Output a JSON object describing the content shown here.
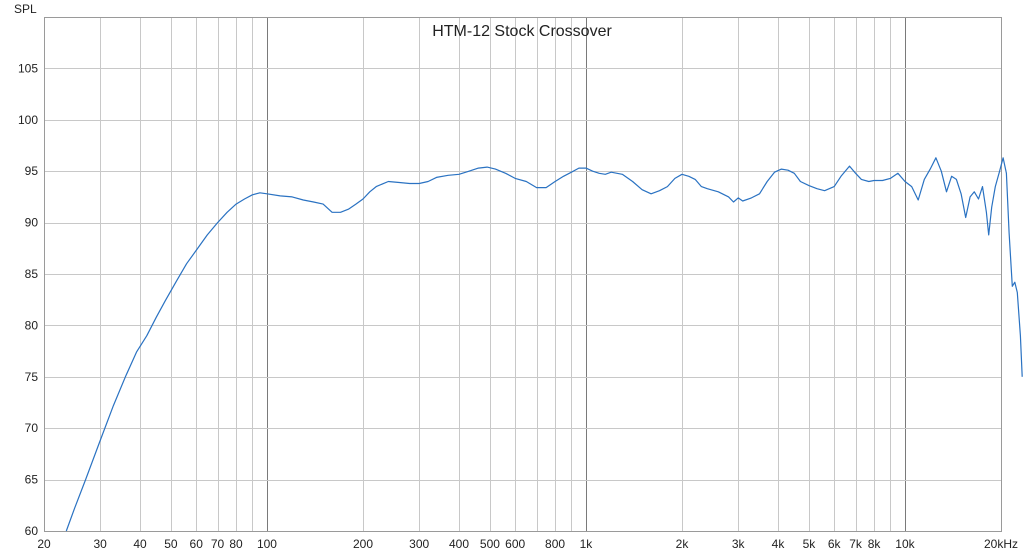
{
  "chart_data": {
    "type": "line",
    "title": "HTM-12 Stock Crossover",
    "ylabel": "SPL",
    "xlabel": "",
    "x_scale": "log",
    "xlim": [
      20,
      20000
    ],
    "ylim": [
      60,
      110
    ],
    "grid": true,
    "x_ticks": [
      {
        "value": 20,
        "label": "20"
      },
      {
        "value": 30,
        "label": "30"
      },
      {
        "value": 40,
        "label": "40"
      },
      {
        "value": 50,
        "label": "50"
      },
      {
        "value": 60,
        "label": "60"
      },
      {
        "value": 70,
        "label": "70"
      },
      {
        "value": 80,
        "label": "80"
      },
      {
        "value": 100,
        "label": "100"
      },
      {
        "value": 200,
        "label": "200"
      },
      {
        "value": 300,
        "label": "300"
      },
      {
        "value": 400,
        "label": "400"
      },
      {
        "value": 500,
        "label": "500"
      },
      {
        "value": 600,
        "label": "600"
      },
      {
        "value": 800,
        "label": "800"
      },
      {
        "value": 1000,
        "label": "1k"
      },
      {
        "value": 2000,
        "label": "2k"
      },
      {
        "value": 3000,
        "label": "3k"
      },
      {
        "value": 4000,
        "label": "4k"
      },
      {
        "value": 5000,
        "label": "5k"
      },
      {
        "value": 6000,
        "label": "6k"
      },
      {
        "value": 7000,
        "label": "7k"
      },
      {
        "value": 8000,
        "label": "8k"
      },
      {
        "value": 10000,
        "label": "10k"
      },
      {
        "value": 20000,
        "label": "20kHz"
      }
    ],
    "y_ticks": [
      60,
      65,
      70,
      75,
      80,
      85,
      90,
      95,
      100,
      105
    ],
    "colors": {
      "line": "#2a72c2",
      "major_grid": "#7a7a7a",
      "minor_grid": "#c8c8c8",
      "frame": "#9a9a9a"
    },
    "series": [
      {
        "points": [
          [
            23.5,
            60.0
          ],
          [
            25,
            62.3
          ],
          [
            27,
            65.0
          ],
          [
            30,
            68.8
          ],
          [
            33,
            72.2
          ],
          [
            36,
            75.0
          ],
          [
            39,
            77.4
          ],
          [
            42,
            79.0
          ],
          [
            45,
            80.8
          ],
          [
            48,
            82.4
          ],
          [
            52,
            84.3
          ],
          [
            56,
            86.0
          ],
          [
            60,
            87.3
          ],
          [
            65,
            88.8
          ],
          [
            70,
            90.0
          ],
          [
            75,
            91.0
          ],
          [
            80,
            91.8
          ],
          [
            85,
            92.3
          ],
          [
            90,
            92.7
          ],
          [
            95,
            92.9
          ],
          [
            100,
            92.8
          ],
          [
            110,
            92.6
          ],
          [
            120,
            92.5
          ],
          [
            130,
            92.2
          ],
          [
            140,
            92.0
          ],
          [
            150,
            91.8
          ],
          [
            160,
            91.0
          ],
          [
            170,
            91.0
          ],
          [
            180,
            91.3
          ],
          [
            190,
            91.8
          ],
          [
            200,
            92.3
          ],
          [
            210,
            93.0
          ],
          [
            220,
            93.5
          ],
          [
            240,
            94.0
          ],
          [
            260,
            93.9
          ],
          [
            280,
            93.8
          ],
          [
            300,
            93.8
          ],
          [
            320,
            94.0
          ],
          [
            340,
            94.4
          ],
          [
            370,
            94.6
          ],
          [
            400,
            94.7
          ],
          [
            430,
            95.0
          ],
          [
            460,
            95.3
          ],
          [
            490,
            95.4
          ],
          [
            520,
            95.2
          ],
          [
            560,
            94.8
          ],
          [
            600,
            94.3
          ],
          [
            650,
            94.0
          ],
          [
            700,
            93.4
          ],
          [
            750,
            93.4
          ],
          [
            800,
            94.0
          ],
          [
            850,
            94.5
          ],
          [
            900,
            94.9
          ],
          [
            950,
            95.3
          ],
          [
            1000,
            95.3
          ],
          [
            1050,
            95.0
          ],
          [
            1100,
            94.8
          ],
          [
            1150,
            94.7
          ],
          [
            1200,
            94.9
          ],
          [
            1300,
            94.7
          ],
          [
            1400,
            94.0
          ],
          [
            1500,
            93.2
          ],
          [
            1600,
            92.8
          ],
          [
            1700,
            93.1
          ],
          [
            1800,
            93.5
          ],
          [
            1900,
            94.3
          ],
          [
            2000,
            94.7
          ],
          [
            2100,
            94.5
          ],
          [
            2200,
            94.2
          ],
          [
            2300,
            93.5
          ],
          [
            2400,
            93.3
          ],
          [
            2600,
            93.0
          ],
          [
            2800,
            92.5
          ],
          [
            2900,
            92.0
          ],
          [
            3000,
            92.4
          ],
          [
            3100,
            92.1
          ],
          [
            3300,
            92.4
          ],
          [
            3500,
            92.8
          ],
          [
            3700,
            94.0
          ],
          [
            3900,
            94.9
          ],
          [
            4100,
            95.2
          ],
          [
            4300,
            95.1
          ],
          [
            4500,
            94.8
          ],
          [
            4700,
            94.0
          ],
          [
            5000,
            93.6
          ],
          [
            5300,
            93.3
          ],
          [
            5600,
            93.1
          ],
          [
            6000,
            93.5
          ],
          [
            6300,
            94.5
          ],
          [
            6700,
            95.5
          ],
          [
            7000,
            94.8
          ],
          [
            7300,
            94.2
          ],
          [
            7700,
            94.0
          ],
          [
            8000,
            94.1
          ],
          [
            8500,
            94.1
          ],
          [
            9000,
            94.3
          ],
          [
            9500,
            94.8
          ],
          [
            10000,
            94.0
          ],
          [
            10500,
            93.5
          ],
          [
            11000,
            92.2
          ],
          [
            11500,
            94.2
          ],
          [
            12000,
            95.2
          ],
          [
            12500,
            96.3
          ],
          [
            13000,
            95.0
          ],
          [
            13500,
            93.0
          ],
          [
            14000,
            94.5
          ],
          [
            14500,
            94.2
          ],
          [
            15000,
            92.8
          ],
          [
            15500,
            90.5
          ],
          [
            16000,
            92.5
          ],
          [
            16500,
            93.0
          ],
          [
            17000,
            92.3
          ],
          [
            17500,
            93.5
          ],
          [
            18000,
            91.0
          ],
          [
            18300,
            88.8
          ],
          [
            18700,
            91.5
          ],
          [
            19200,
            93.5
          ],
          [
            19800,
            95.0
          ],
          [
            20300,
            96.3
          ],
          [
            20800,
            94.8
          ],
          [
            21200,
            89.0
          ],
          [
            21700,
            83.8
          ],
          [
            22100,
            84.2
          ],
          [
            22500,
            83.2
          ],
          [
            23000,
            79.0
          ],
          [
            23300,
            75.0
          ]
        ]
      }
    ]
  }
}
